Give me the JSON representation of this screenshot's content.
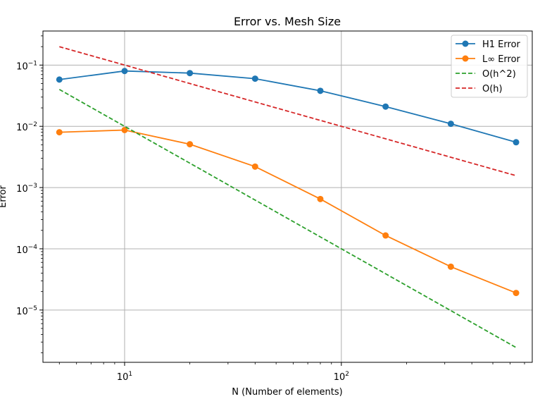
{
  "chart_data": {
    "type": "line",
    "title": "Error vs. Mesh Size",
    "xlabel": "N (Number of elements)",
    "ylabel": "Error",
    "x_scale": "log",
    "y_scale": "log",
    "xlim": [
      4.2,
      760
    ],
    "ylim": [
      1.4e-06,
      0.36
    ],
    "grid": true,
    "legend_position": "top-right",
    "x_ticks": [
      {
        "value": 10,
        "label": "10",
        "exp": "1"
      },
      {
        "value": 100,
        "label": "10",
        "exp": "2"
      }
    ],
    "y_ticks": [
      {
        "value": 1e-05,
        "label": "10",
        "exp": "−5"
      },
      {
        "value": 0.0001,
        "label": "10",
        "exp": "−4"
      },
      {
        "value": 0.001,
        "label": "10",
        "exp": "−3"
      },
      {
        "value": 0.01,
        "label": "10",
        "exp": "−2"
      },
      {
        "value": 0.1,
        "label": "10",
        "exp": "−1"
      }
    ],
    "series": [
      {
        "name": "H1 Error",
        "color": "#1f77b4",
        "dash": "solid",
        "marker": "circle",
        "x": [
          5,
          10,
          20,
          40,
          80,
          160,
          320,
          640
        ],
        "y": [
          0.058,
          0.08,
          0.074,
          0.06,
          0.038,
          0.021,
          0.011,
          0.0055
        ]
      },
      {
        "name": "L∞ Error",
        "color": "#ff7f0e",
        "dash": "solid",
        "marker": "circle",
        "x": [
          5,
          10,
          20,
          40,
          80,
          160,
          320,
          640
        ],
        "y": [
          0.008,
          0.0087,
          0.0051,
          0.0022,
          0.00065,
          0.000165,
          5.1e-05,
          1.9e-05
        ]
      },
      {
        "name": "O(h^2)",
        "color": "#2ca02c",
        "dash": "dashed",
        "marker": "none",
        "x": [
          5,
          10,
          20,
          40,
          80,
          160,
          320,
          640
        ],
        "y": [
          0.04,
          0.01,
          0.0025,
          0.000625,
          0.00015625,
          3.90625e-05,
          9.7656e-06,
          2.4414e-06
        ]
      },
      {
        "name": "O(h)",
        "color": "#d62728",
        "dash": "dashed",
        "marker": "none",
        "x": [
          5,
          10,
          20,
          40,
          80,
          160,
          320,
          640
        ],
        "y": [
          0.2,
          0.1,
          0.05,
          0.025,
          0.0125,
          0.00625,
          0.003125,
          0.0015625
        ]
      }
    ]
  }
}
